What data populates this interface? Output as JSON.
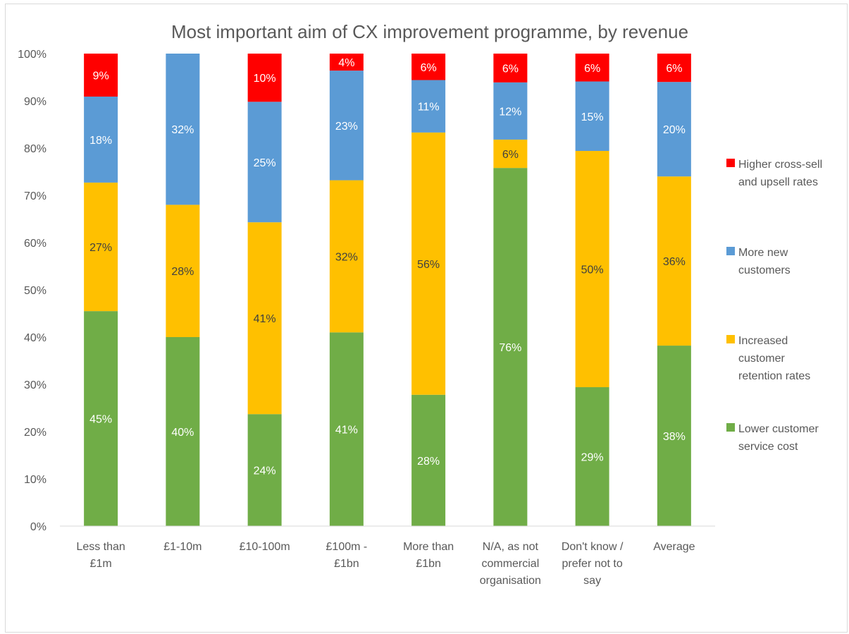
{
  "chart_data": {
    "type": "bar",
    "stacked": true,
    "title": "Most important aim of CX improvement programme, by revenue",
    "xlabel": "",
    "ylabel": "",
    "ylim": [
      0,
      1
    ],
    "yticks": [
      "0%",
      "10%",
      "20%",
      "30%",
      "40%",
      "50%",
      "60%",
      "70%",
      "80%",
      "90%",
      "100%"
    ],
    "grid": false,
    "legend_position": "right",
    "categories": [
      [
        "Less than",
        "£1m"
      ],
      [
        "£1-10m"
      ],
      [
        "£10-100m"
      ],
      [
        "£100m -",
        "£1bn"
      ],
      [
        "More than",
        "£1bn"
      ],
      [
        "N/A, as not",
        "commercial",
        "organisation"
      ],
      [
        "Don't know /",
        "prefer not to",
        "say"
      ],
      [
        "Average"
      ]
    ],
    "series": [
      {
        "name": "Lower customer service cost",
        "legend_lines": [
          "Lower customer",
          "service cost"
        ],
        "color": "#70ad47",
        "label_color": "#ffffff",
        "values": [
          0.455,
          0.4,
          0.237,
          0.41,
          0.278,
          0.758,
          0.294,
          0.382
        ],
        "labels": [
          "45%",
          "40%",
          "24%",
          "41%",
          "28%",
          "76%",
          "29%",
          "38%"
        ]
      },
      {
        "name": "Increased customer retention rates",
        "legend_lines": [
          "Increased",
          "customer",
          "retention rates"
        ],
        "color": "#ffc000",
        "label_color": "#404040",
        "values": [
          0.272,
          0.28,
          0.406,
          0.322,
          0.555,
          0.06,
          0.5,
          0.358
        ],
        "labels": [
          "27%",
          "28%",
          "41%",
          "32%",
          "56%",
          "6%",
          "50%",
          "36%"
        ]
      },
      {
        "name": "More new customers",
        "legend_lines": [
          "More new",
          "customers"
        ],
        "color": "#5b9bd5",
        "label_color": "#ffffff",
        "values": [
          0.182,
          0.32,
          0.255,
          0.232,
          0.111,
          0.121,
          0.147,
          0.2
        ],
        "labels": [
          "18%",
          "32%",
          "25%",
          "23%",
          "11%",
          "12%",
          "15%",
          "20%"
        ]
      },
      {
        "name": "Higher cross-sell and upsell rates",
        "legend_lines": [
          "Higher cross-sell",
          "and upsell rates"
        ],
        "color": "#ff0000",
        "label_color": "#ffffff",
        "values": [
          0.091,
          0.0,
          0.102,
          0.036,
          0.056,
          0.061,
          0.059,
          0.06
        ],
        "labels": [
          "9%",
          "",
          "10%",
          "4%",
          "6%",
          "6%",
          "6%",
          "6%"
        ]
      }
    ]
  }
}
